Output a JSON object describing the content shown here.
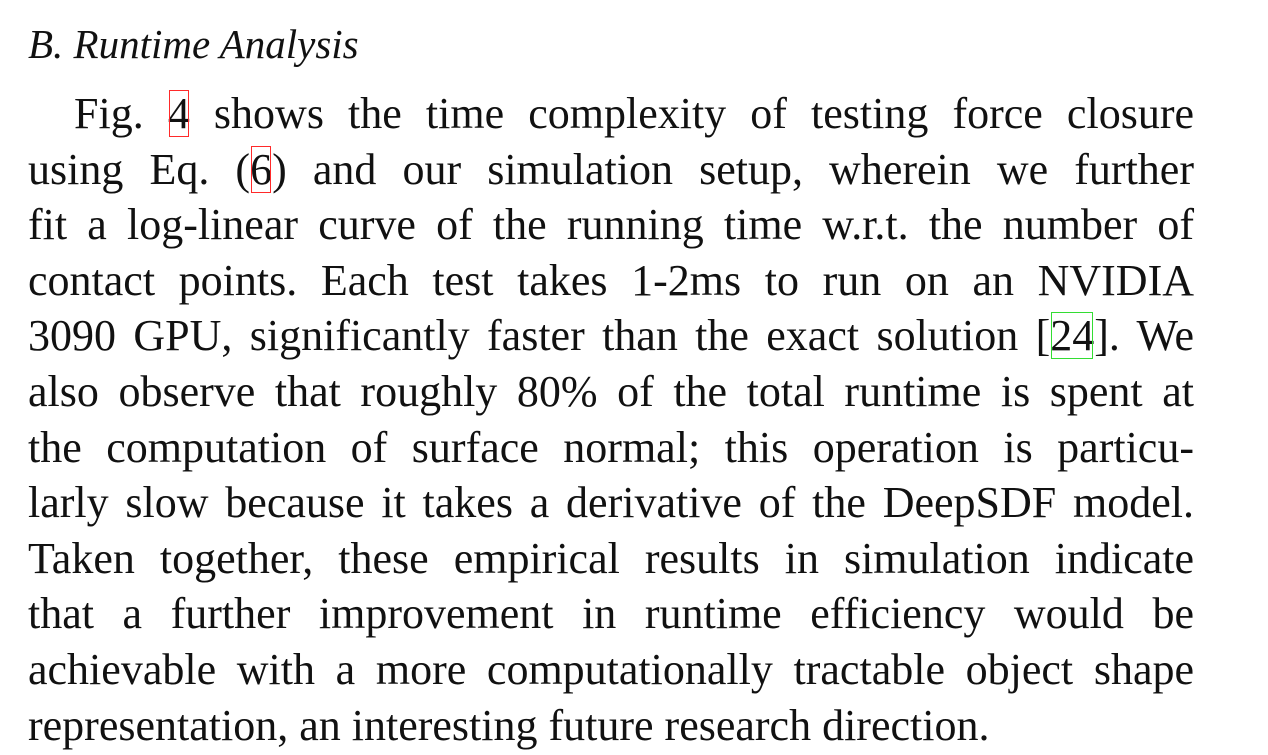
{
  "section": {
    "heading": "B.  Runtime Analysis"
  },
  "paragraph": {
    "lines": [
      {
        "pre": "Fig. ",
        "ref": "4",
        "post": " shows the time complexity of testing force closure"
      },
      {
        "pre": "using Eq. (",
        "ref": "6",
        "post": ") and our simulation setup, wherein we further"
      },
      {
        "text": "fit a log-linear curve of the running time w.r.t. the number of"
      },
      {
        "text": "contact points. Each test takes 1-2ms to run on an NVIDIA"
      },
      {
        "pre": "3090 GPU, significantly faster than the exact solution [",
        "ref": "24",
        "post": "]. We"
      },
      {
        "text": "also observe that roughly 80% of the total runtime is spent at"
      },
      {
        "text": "the computation of surface normal; this operation is particu-"
      },
      {
        "text": "larly slow because it takes a derivative of the DeepSDF model."
      },
      {
        "text": "Taken together, these empirical results in simulation indicate"
      },
      {
        "text": "that a further improvement in runtime efficiency would be"
      },
      {
        "text": "achievable with a more computationally tractable object shape"
      },
      {
        "text": "representation, an interesting future research direction."
      }
    ]
  },
  "colors": {
    "figure_ref_box": "#ff2a2a",
    "equation_ref_box": "#ff2a2a",
    "citation_ref_box": "#33dd33"
  }
}
